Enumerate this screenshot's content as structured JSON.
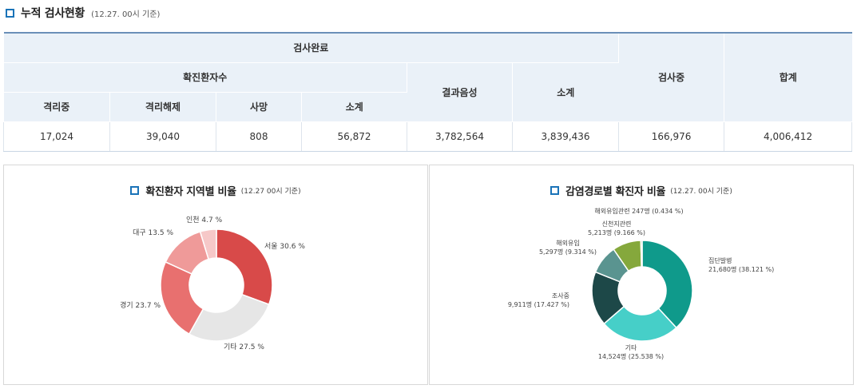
{
  "header": {
    "title": "누적 검사현황",
    "subtitle": "(12.27. 00시 기준)"
  },
  "table": {
    "head": {
      "completed": "검사완료",
      "confirmed": "확진환자수",
      "negative": "결과음성",
      "subtotal2": "소계",
      "in_test": "검사중",
      "total": "합계",
      "isolating": "격리중",
      "released": "격리해제",
      "deaths": "사망",
      "subtotal1": "소계"
    },
    "row": [
      "17,024",
      "39,040",
      "808",
      "56,872",
      "3,782,564",
      "3,839,436",
      "166,976",
      "4,006,412"
    ]
  },
  "chart_data": [
    {
      "type": "pie",
      "variant": "donut",
      "title": "확진환자 지역별 비율",
      "subtitle": "(12.27 00시 기준)",
      "slices": [
        {
          "label": "서울 30.6 %",
          "value": 30.6,
          "color": "#d84a49"
        },
        {
          "label": "기타 27.5 %",
          "value": 27.5,
          "color": "#e6e6e6"
        },
        {
          "label": "경기 23.7 %",
          "value": 23.7,
          "color": "#e8706f"
        },
        {
          "label": "대구 13.5 %",
          "value": 13.5,
          "color": "#ef9a99"
        },
        {
          "label": "인천 4.7 %",
          "value": 4.7,
          "color": "#f6c8c8"
        }
      ]
    },
    {
      "type": "pie",
      "variant": "donut",
      "title": "감염경로별 확진자 비율",
      "subtitle": "(12.27. 00시 기준)",
      "slices": [
        {
          "label1": "집단발병",
          "label2": "21,680명 (38.121 %)",
          "value": 38.121,
          "color": "#0f9a8b"
        },
        {
          "label1": "기타",
          "label2": "14,524명 (25.538 %)",
          "value": 25.538,
          "color": "#46cfc8"
        },
        {
          "label1": "조사중",
          "label2": "9,911명 (17.427 %)",
          "value": 17.427,
          "color": "#1d4848"
        },
        {
          "label1": "해외유입",
          "label2": "5,297명 (9.314 %)",
          "value": 9.314,
          "color": "#5a9490"
        },
        {
          "label1": "신천지관련",
          "label2": "5,213명 (9.166 %)",
          "value": 9.166,
          "color": "#85a83c"
        },
        {
          "label1": "해외유입관련 247명 (0.434 %)",
          "label2": "",
          "value": 0.434,
          "color": "#3a7a3a"
        }
      ]
    }
  ]
}
